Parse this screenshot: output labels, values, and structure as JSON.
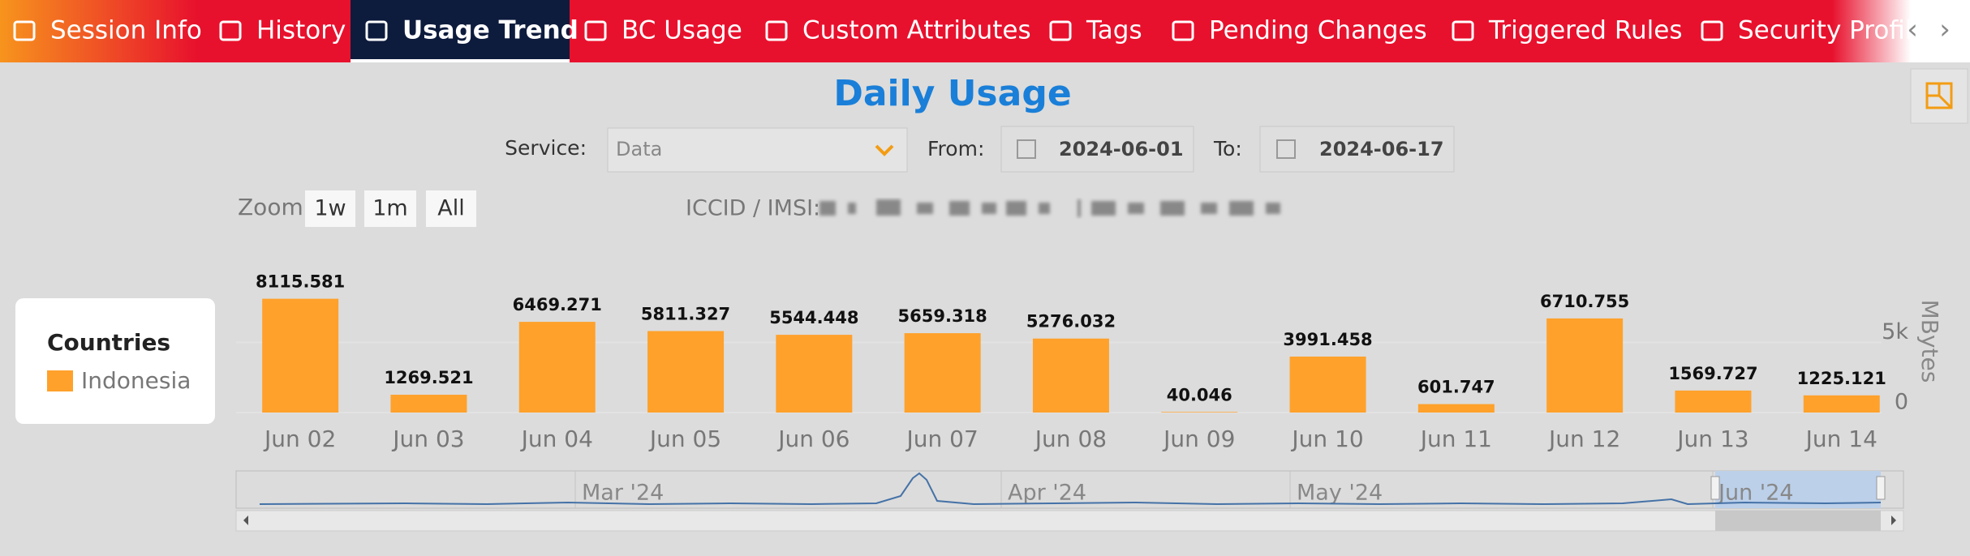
{
  "tabs": [
    {
      "label": "Session Info",
      "active": false
    },
    {
      "label": "History",
      "active": false
    },
    {
      "label": "Usage Trend",
      "active": true
    },
    {
      "label": "BC Usage",
      "active": false
    },
    {
      "label": "Custom Attributes",
      "active": false
    },
    {
      "label": "Tags",
      "active": false
    },
    {
      "label": "Pending Changes",
      "active": false
    },
    {
      "label": "Triggered Rules",
      "active": false
    },
    {
      "label": "Security Profile",
      "active": false
    }
  ],
  "controls": {
    "service_label": "Service:",
    "service_value": "Data",
    "from_label": "From:",
    "from_value": "2024-06-01",
    "to_label": "To:",
    "to_value": "2024-06-17",
    "zoom_label": "Zoom",
    "zoom_buttons": [
      "1w",
      "1m",
      "All"
    ],
    "iccid_label": "ICCID / IMSI:"
  },
  "navigator_labels": [
    "Mar '24",
    "Apr '24",
    "May '24",
    "Jun '24"
  ],
  "chart_data": {
    "type": "bar",
    "title": "Daily Usage",
    "categories": [
      "Jun 02",
      "Jun 03",
      "Jun 04",
      "Jun 05",
      "Jun 06",
      "Jun 07",
      "Jun 08",
      "Jun 09",
      "Jun 10",
      "Jun 11",
      "Jun 12",
      "Jun 13",
      "Jun 14"
    ],
    "series": [
      {
        "name": "Indonesia",
        "color": "#ffa12b",
        "values": [
          8115.581,
          1269.521,
          6469.271,
          5811.327,
          5544.448,
          5659.318,
          5276.032,
          40.046,
          3991.458,
          601.747,
          6710.755,
          1569.727,
          1225.121
        ]
      }
    ],
    "legend_title": "Countries",
    "y_axis_label": "MBytes",
    "ylim": [
      0,
      10000
    ],
    "yticks": [
      0,
      {
        "value": 5000,
        "label": "5k"
      }
    ],
    "grid": true
  }
}
